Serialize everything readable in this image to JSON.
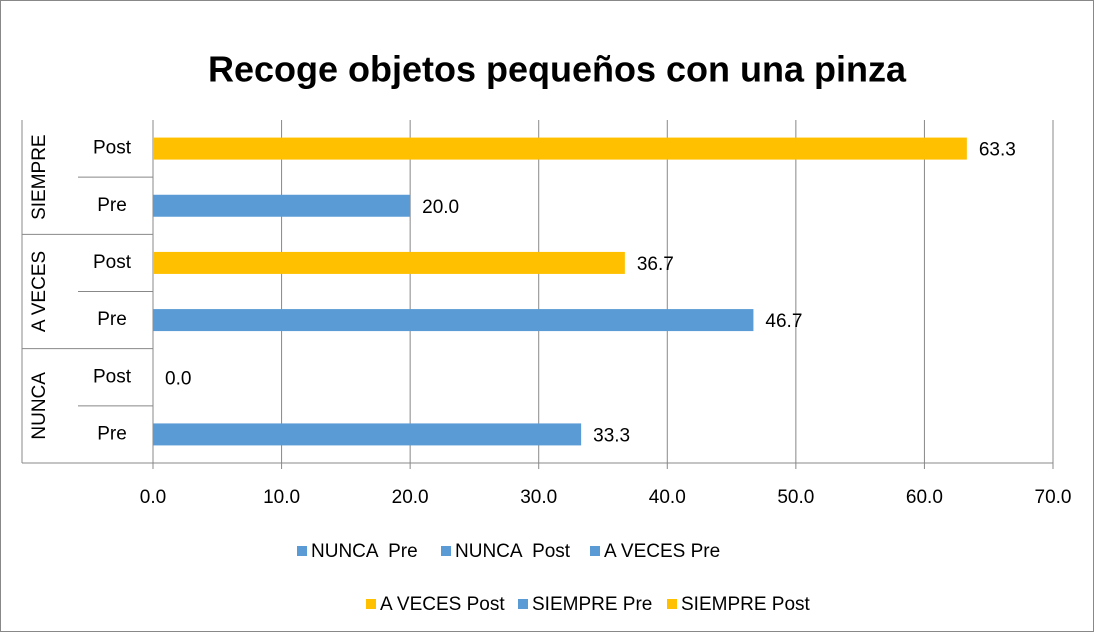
{
  "chart_data": {
    "type": "bar",
    "orientation": "horizontal",
    "title": "Recoge objetos pequeños con una pinza",
    "groups": [
      "NUNCA",
      "A VECES",
      "SIEMPRE"
    ],
    "categories": [
      "Pre",
      "Post",
      "Pre",
      "Post",
      "Pre",
      "Post"
    ],
    "series": [
      {
        "name": "NUNCA  Pre",
        "color": "#5b9bd5",
        "values": [
          33.3,
          null,
          null,
          null,
          null,
          null
        ],
        "value_labels": [
          "33.3",
          null,
          null,
          null,
          null,
          null
        ]
      },
      {
        "name": "NUNCA  Post",
        "color": "#5b9bd5",
        "values": [
          null,
          0.0,
          null,
          null,
          null,
          null
        ],
        "value_labels": [
          null,
          "0.0",
          null,
          null,
          null,
          null
        ]
      },
      {
        "name": "A VECES Pre",
        "color": "#5b9bd5",
        "values": [
          null,
          null,
          46.7,
          null,
          null,
          null
        ],
        "value_labels": [
          null,
          null,
          "46.7",
          null,
          null,
          null
        ]
      },
      {
        "name": "A VECES Post",
        "color": "#ffc000",
        "values": [
          null,
          null,
          null,
          36.7,
          null,
          null
        ],
        "value_labels": [
          null,
          null,
          null,
          "36.7",
          null,
          null
        ]
      },
      {
        "name": "SIEMPRE Pre",
        "color": "#5b9bd5",
        "values": [
          null,
          null,
          null,
          null,
          20.0,
          null
        ],
        "value_labels": [
          null,
          null,
          null,
          null,
          "20.0",
          null
        ]
      },
      {
        "name": "SIEMPRE Post",
        "color": "#ffc000",
        "values": [
          null,
          null,
          null,
          null,
          null,
          63.3
        ],
        "value_labels": [
          null,
          null,
          null,
          null,
          null,
          "63.3"
        ]
      }
    ],
    "xlim": [
      0,
      70
    ],
    "xticks": [
      {
        "value": 0,
        "label": "0.0"
      },
      {
        "value": 10,
        "label": "10.0"
      },
      {
        "value": 20,
        "label": "20.0"
      },
      {
        "value": 30,
        "label": "30.0"
      },
      {
        "value": 40,
        "label": "40.0"
      },
      {
        "value": 50,
        "label": "50.0"
      },
      {
        "value": 60,
        "label": "60.0"
      },
      {
        "value": 70,
        "label": "70.0"
      }
    ],
    "grid": true,
    "legend": "bottom"
  }
}
